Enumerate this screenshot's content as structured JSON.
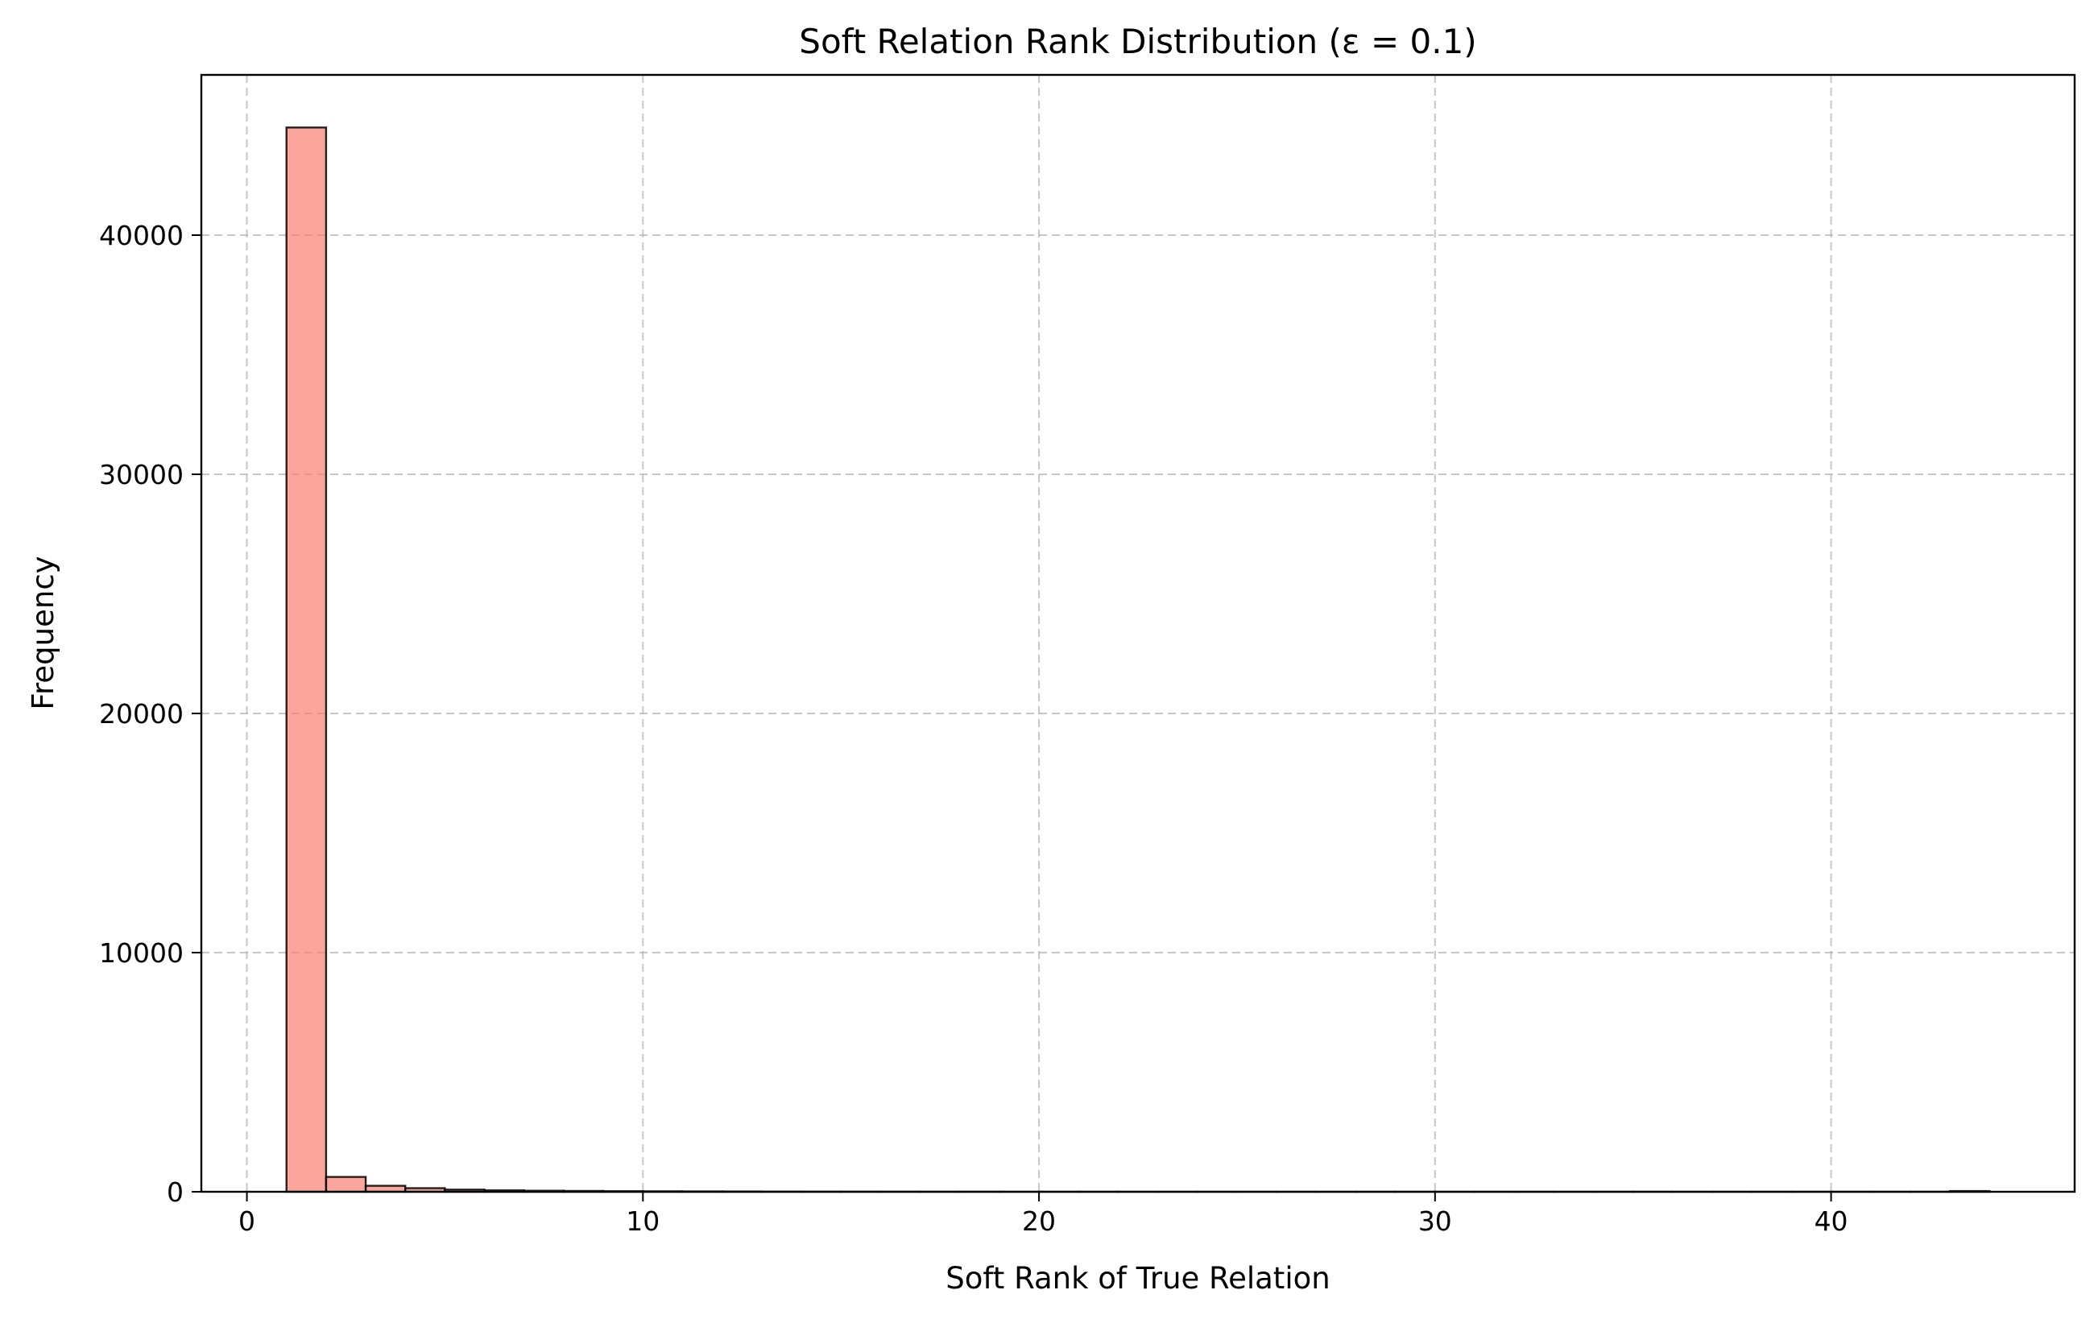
{
  "chart_data": {
    "type": "bar",
    "title": "Soft Relation Rank Distribution (ε = 0.1)",
    "xlabel": "Soft Rank of True Relation",
    "ylabel": "Frequency",
    "xlim": [
      -1.15,
      46.15
    ],
    "ylim": [
      0,
      46700
    ],
    "x_ticks": [
      0,
      10,
      20,
      30,
      40
    ],
    "y_ticks": [
      0,
      10000,
      20000,
      30000,
      40000,
      50000
    ],
    "x_tick_labels": [
      "0",
      "10",
      "20",
      "30",
      "40"
    ],
    "y_tick_labels": [
      "0",
      "10000",
      "20000",
      "30000",
      "40000"
    ],
    "grid": true,
    "bar_color": "#fa8072",
    "bar_alpha": 0.7,
    "edge_color": "#000000",
    "bin_edges": [
      1.0,
      2.0,
      3.0,
      4.0,
      5.0,
      6.0,
      7.0,
      8.0,
      9.0,
      10.0,
      11.0,
      12.0,
      13.0,
      14.0,
      15.0,
      16.0,
      17.0,
      18.0,
      19.0,
      20.0,
      21.0,
      22.0,
      23.0,
      24.0,
      25.0,
      26.0,
      27.0,
      28.0,
      29.0,
      30.0,
      31.0,
      32.0,
      33.0,
      34.0,
      35.0,
      36.0,
      37.0,
      38.0,
      39.0,
      40.0,
      41.0,
      42.0,
      43.0,
      44.0
    ],
    "values": [
      44500,
      620,
      250,
      150,
      90,
      60,
      45,
      35,
      25,
      20,
      15,
      12,
      8,
      6,
      5,
      4,
      3,
      3,
      2,
      2,
      2,
      1,
      1,
      1,
      1,
      1,
      1,
      1,
      1,
      1,
      1,
      1,
      1,
      1,
      1,
      1,
      1,
      1,
      1,
      1,
      1,
      1,
      30
    ]
  }
}
